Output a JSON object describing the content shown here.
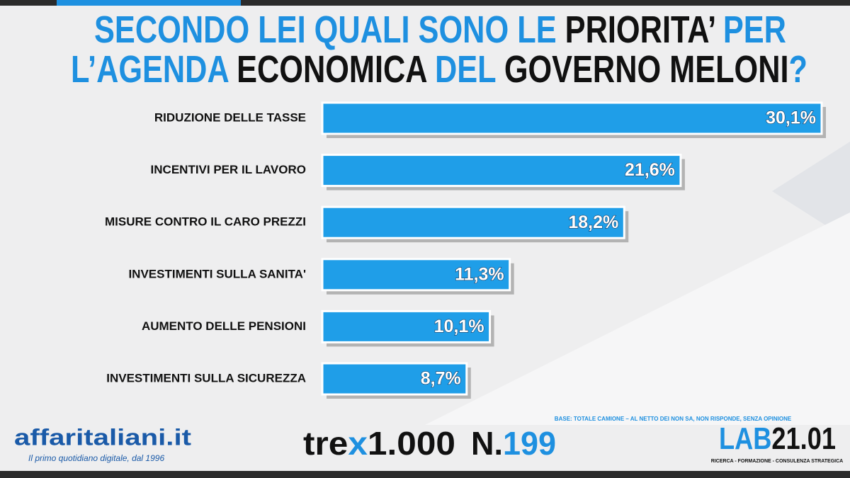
{
  "chart_data": {
    "type": "bar",
    "orientation": "horizontal",
    "title_lines": [
      [
        {
          "text": "SECONDO LEI QUALI SONO LE ",
          "color": "#1e90e0"
        },
        {
          "text": "PRIORITA’ ",
          "color": "#111111"
        },
        {
          "text": "PER",
          "color": "#1e90e0"
        }
      ],
      [
        {
          "text": "L’AGENDA ",
          "color": "#1e90e0"
        },
        {
          "text": "ECONOMICA ",
          "color": "#111111"
        },
        {
          "text": "DEL ",
          "color": "#1e90e0"
        },
        {
          "text": "GOVERNO MELONI",
          "color": "#111111"
        },
        {
          "text": "?",
          "color": "#1e90e0"
        }
      ]
    ],
    "categories": [
      "RIDUZIONE DELLE TASSE",
      "INCENTIVI PER IL LAVORO",
      "MISURE CONTRO IL CARO PREZZI",
      "INVESTIMENTI SULLA SANITA'",
      "AUMENTO DELLE PENSIONI",
      "INVESTIMENTI SULLA SICUREZZA"
    ],
    "values": [
      30.1,
      21.6,
      18.2,
      11.3,
      10.1,
      8.7
    ],
    "value_labels": [
      "30,1%",
      "21,6%",
      "18,2%",
      "11,3%",
      "10,1%",
      "8,7%"
    ],
    "color": "#1f9ee8",
    "note": "BASE: TOTALE CAMIONE – AL NETTO DEI NON SA, NON RISPONDE, SENZA OPINIONE"
  },
  "footer": {
    "brand": "affaritaliani.it",
    "tagline": "Il primo quotidiano digitale, dal 1996",
    "survey_parts": [
      "tre",
      "x",
      "1.000"
    ],
    "number_prefix": "N.",
    "number": "199",
    "lab_parts": [
      "LAB",
      "21.01"
    ],
    "lab_tagline": "RICERCA - FORMAZIONE - CONSULENZA STRATEGICA"
  }
}
